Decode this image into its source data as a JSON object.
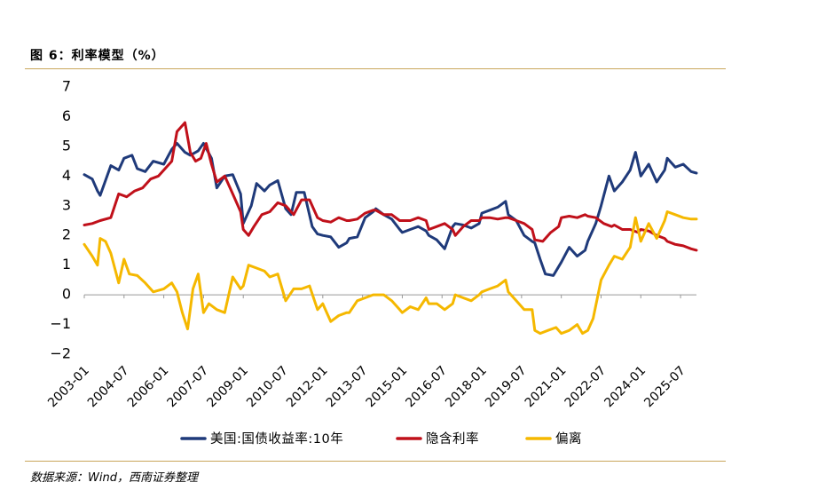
{
  "header": {
    "title": "图 6：利率模型（%）"
  },
  "footer": {
    "source": "数据来源：Wind，西南证券整理"
  },
  "chart_data": {
    "type": "line",
    "title": "图 6：利率模型（%）",
    "xlabel": "",
    "ylabel": "",
    "ylim": [
      -2,
      7
    ],
    "yticks": [
      -2,
      -1,
      0,
      1,
      2,
      3,
      4,
      5,
      6,
      7
    ],
    "ytick_labels": [
      "−2",
      "−1",
      "0",
      "1",
      "2",
      "3",
      "4",
      "5",
      "6",
      "7"
    ],
    "xlim": [
      2003.0,
      2026.1
    ],
    "xtick_labels": [
      "2003-01",
      "2004-07",
      "2006-01",
      "2007-07",
      "2009-01",
      "2010-07",
      "2012-01",
      "2013-07",
      "2015-01",
      "2016-07",
      "2018-01",
      "2019-07",
      "2021-01",
      "2022-07",
      "2024-01",
      "2025-07"
    ],
    "legend_position": "bottom",
    "series": [
      {
        "name": "美国:国债收益率:10年",
        "color": "#1f3a7a",
        "x": [
          2003.0,
          2003.3,
          2003.5,
          2003.6,
          2004.0,
          2004.3,
          2004.5,
          2004.8,
          2005.0,
          2005.3,
          2005.6,
          2006.0,
          2006.3,
          2006.5,
          2006.8,
          2007.0,
          2007.3,
          2007.5,
          2007.8,
          2008.0,
          2008.3,
          2008.6,
          2008.9,
          2009.0,
          2009.3,
          2009.5,
          2009.8,
          2010.0,
          2010.3,
          2010.6,
          2010.8,
          2011.0,
          2011.3,
          2011.6,
          2011.8,
          2012.0,
          2012.3,
          2012.6,
          2012.9,
          2013.0,
          2013.3,
          2013.6,
          2013.9,
          2014.0,
          2014.3,
          2014.6,
          2014.9,
          2015.0,
          2015.3,
          2015.6,
          2015.9,
          2016.0,
          2016.3,
          2016.6,
          2016.9,
          2017.0,
          2017.3,
          2017.6,
          2017.9,
          2018.0,
          2018.3,
          2018.6,
          2018.9,
          2019.0,
          2019.3,
          2019.6,
          2019.9,
          2020.0,
          2020.2,
          2020.4,
          2020.7,
          2021.0,
          2021.3,
          2021.6,
          2021.9,
          2022.0,
          2022.3,
          2022.5,
          2022.8,
          2023.0,
          2023.3,
          2023.6,
          2023.8,
          2024.0,
          2024.3,
          2024.6,
          2024.9,
          2025.0,
          2025.3,
          2025.6,
          2025.9,
          2026.1
        ],
        "values": [
          4.05,
          3.9,
          3.5,
          3.35,
          4.35,
          4.2,
          4.6,
          4.7,
          4.25,
          4.15,
          4.5,
          4.4,
          4.9,
          5.1,
          4.8,
          4.7,
          4.85,
          5.1,
          4.6,
          3.6,
          4.0,
          4.05,
          3.4,
          2.4,
          3.0,
          3.75,
          3.5,
          3.7,
          3.85,
          2.9,
          2.7,
          3.45,
          3.45,
          2.3,
          2.05,
          2.0,
          1.95,
          1.6,
          1.75,
          1.9,
          1.95,
          2.6,
          2.8,
          2.9,
          2.7,
          2.55,
          2.2,
          2.1,
          2.2,
          2.3,
          2.15,
          2.0,
          1.85,
          1.55,
          2.3,
          2.4,
          2.35,
          2.25,
          2.4,
          2.75,
          2.85,
          2.95,
          3.15,
          2.7,
          2.5,
          2.0,
          1.8,
          1.75,
          1.2,
          0.7,
          0.65,
          1.1,
          1.6,
          1.3,
          1.5,
          1.8,
          2.4,
          3.0,
          4.0,
          3.5,
          3.8,
          4.2,
          4.8,
          4.0,
          4.4,
          3.8,
          4.2,
          4.6,
          4.3,
          4.4,
          4.15,
          4.1
        ]
      },
      {
        "name": "隐含利率",
        "color": "#c0101a",
        "x": [
          2003.0,
          2003.3,
          2003.6,
          2004.0,
          2004.3,
          2004.6,
          2004.9,
          2005.2,
          2005.5,
          2005.8,
          2006.0,
          2006.3,
          2006.5,
          2006.8,
          2007.0,
          2007.2,
          2007.4,
          2007.6,
          2007.8,
          2008.0,
          2008.3,
          2008.6,
          2008.9,
          2009.0,
          2009.2,
          2009.4,
          2009.7,
          2010.0,
          2010.3,
          2010.6,
          2010.9,
          2011.2,
          2011.5,
          2011.8,
          2012.0,
          2012.3,
          2012.6,
          2012.9,
          2013.0,
          2013.3,
          2013.6,
          2013.9,
          2014.0,
          2014.3,
          2014.6,
          2014.9,
          2015.0,
          2015.3,
          2015.6,
          2015.9,
          2016.0,
          2016.3,
          2016.6,
          2016.9,
          2017.0,
          2017.3,
          2017.6,
          2017.9,
          2018.0,
          2018.3,
          2018.6,
          2018.9,
          2019.0,
          2019.3,
          2019.6,
          2019.9,
          2020.0,
          2020.3,
          2020.6,
          2020.9,
          2021.0,
          2021.3,
          2021.6,
          2021.9,
          2022.0,
          2022.3,
          2022.6,
          2022.9,
          2023.0,
          2023.3,
          2023.6,
          2023.9,
          2024.0,
          2024.3,
          2024.6,
          2024.9,
          2025.0,
          2025.3,
          2025.6,
          2025.9,
          2026.1
        ],
        "values": [
          2.35,
          2.4,
          2.5,
          2.6,
          3.4,
          3.3,
          3.5,
          3.6,
          3.9,
          4.0,
          4.2,
          4.5,
          5.5,
          5.8,
          4.8,
          4.5,
          4.6,
          5.1,
          4.4,
          3.8,
          4.0,
          3.4,
          2.8,
          2.2,
          2.0,
          2.3,
          2.7,
          2.8,
          3.1,
          3.0,
          2.7,
          3.2,
          3.2,
          2.6,
          2.5,
          2.45,
          2.6,
          2.5,
          2.5,
          2.55,
          2.75,
          2.85,
          2.85,
          2.7,
          2.7,
          2.5,
          2.5,
          2.5,
          2.6,
          2.5,
          2.2,
          2.3,
          2.4,
          2.2,
          2.0,
          2.3,
          2.5,
          2.5,
          2.6,
          2.6,
          2.55,
          2.6,
          2.6,
          2.5,
          2.4,
          2.2,
          1.85,
          1.8,
          2.1,
          2.3,
          2.6,
          2.65,
          2.6,
          2.7,
          2.65,
          2.6,
          2.4,
          2.3,
          2.35,
          2.2,
          2.2,
          2.1,
          2.2,
          2.15,
          2.0,
          1.9,
          1.8,
          1.7,
          1.65,
          1.55,
          1.5
        ]
      },
      {
        "name": "偏离",
        "color": "#f5b800",
        "x": [
          2003.0,
          2003.3,
          2003.5,
          2003.6,
          2003.8,
          2004.0,
          2004.3,
          2004.5,
          2004.7,
          2005.0,
          2005.3,
          2005.6,
          2006.0,
          2006.3,
          2006.5,
          2006.7,
          2006.9,
          2007.1,
          2007.3,
          2007.5,
          2007.7,
          2008.0,
          2008.3,
          2008.6,
          2008.9,
          2009.0,
          2009.2,
          2009.5,
          2009.8,
          2010.0,
          2010.3,
          2010.6,
          2010.9,
          2011.2,
          2011.5,
          2011.8,
          2012.0,
          2012.3,
          2012.6,
          2012.9,
          2013.0,
          2013.3,
          2013.6,
          2013.9,
          2014.0,
          2014.3,
          2014.6,
          2014.9,
          2015.0,
          2015.3,
          2015.6,
          2015.9,
          2016.0,
          2016.3,
          2016.6,
          2016.9,
          2017.0,
          2017.3,
          2017.6,
          2017.9,
          2018.0,
          2018.3,
          2018.6,
          2018.9,
          2019.0,
          2019.3,
          2019.6,
          2019.9,
          2020.0,
          2020.2,
          2020.5,
          2020.8,
          2021.0,
          2021.3,
          2021.6,
          2021.8,
          2022.0,
          2022.2,
          2022.5,
          2022.8,
          2023.0,
          2023.3,
          2023.6,
          2023.8,
          2024.0,
          2024.3,
          2024.6,
          2024.9,
          2025.0,
          2025.3,
          2025.6,
          2025.9,
          2026.1
        ],
        "values": [
          1.7,
          1.3,
          1.0,
          1.9,
          1.8,
          1.4,
          0.4,
          1.2,
          0.7,
          0.65,
          0.4,
          0.1,
          0.2,
          0.4,
          0.1,
          -0.6,
          -1.15,
          0.2,
          0.7,
          -0.6,
          -0.3,
          -0.5,
          -0.6,
          0.6,
          0.2,
          0.3,
          1.0,
          0.9,
          0.8,
          0.6,
          0.7,
          -0.2,
          0.2,
          0.2,
          0.3,
          -0.5,
          -0.3,
          -0.9,
          -0.7,
          -0.6,
          -0.6,
          -0.2,
          -0.1,
          0.0,
          0.0,
          0.0,
          -0.2,
          -0.5,
          -0.6,
          -0.4,
          -0.5,
          -0.1,
          -0.3,
          -0.3,
          -0.5,
          -0.3,
          0.0,
          -0.1,
          -0.2,
          0.0,
          0.1,
          0.2,
          0.3,
          0.5,
          0.1,
          -0.2,
          -0.5,
          -0.5,
          -1.2,
          -1.3,
          -1.2,
          -1.1,
          -1.3,
          -1.2,
          -1.0,
          -1.3,
          -1.2,
          -0.8,
          0.5,
          1.0,
          1.3,
          1.2,
          1.6,
          2.6,
          1.8,
          2.4,
          1.9,
          2.5,
          2.8,
          2.7,
          2.6,
          2.55,
          2.55
        ]
      }
    ]
  }
}
